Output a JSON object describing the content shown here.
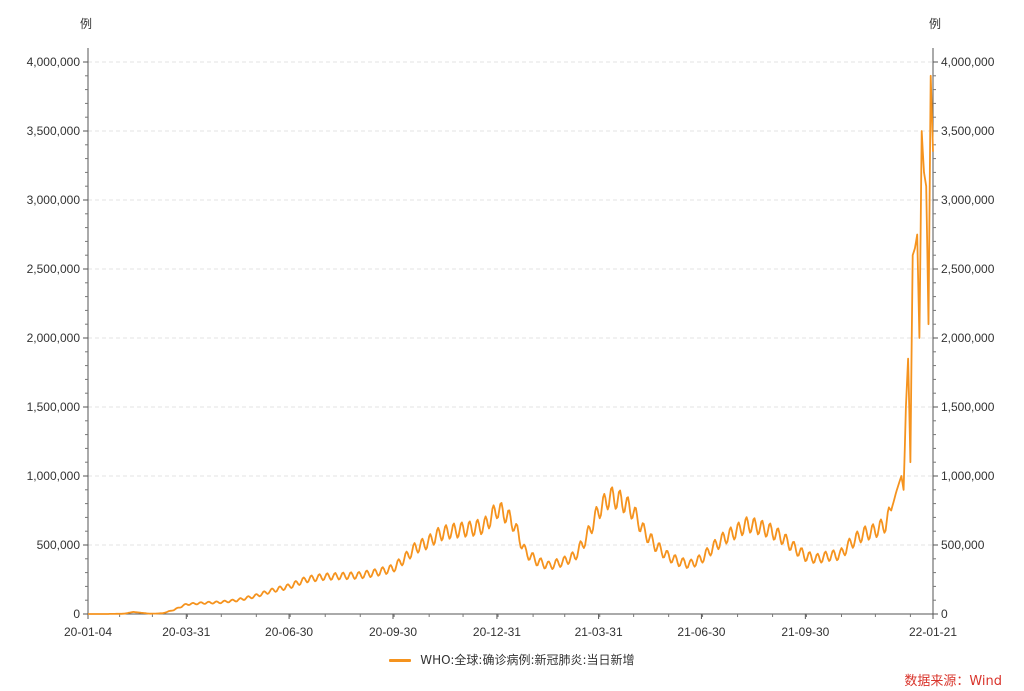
{
  "chart_data": {
    "type": "line",
    "title": "",
    "ylabel_left": "例",
    "ylabel_right": "例",
    "ylim": [
      0,
      4000000
    ],
    "y_ticks": [
      0,
      500000,
      1000000,
      1500000,
      2000000,
      2500000,
      3000000,
      3500000,
      4000000
    ],
    "y_tick_labels": [
      "0",
      "500,000",
      "1,000,000",
      "1,500,000",
      "2,000,000",
      "2,500,000",
      "3,000,000",
      "3,500,000",
      "4,000,000"
    ],
    "xlim": [
      "2020-01-04",
      "2022-01-21"
    ],
    "x_tick_labels": [
      "20-01-04",
      "20-03-31",
      "20-06-30",
      "20-09-30",
      "20-12-31",
      "21-03-31",
      "21-06-30",
      "21-09-30",
      "22-01-21"
    ],
    "x_tick_dates": [
      "2020-01-04",
      "2020-03-31",
      "2020-06-30",
      "2020-09-30",
      "2020-12-31",
      "2021-03-31",
      "2021-06-30",
      "2021-09-30",
      "2022-01-21"
    ],
    "grid": "horizontal-dashed",
    "legend_placement": "bottom-center",
    "series": [
      {
        "name": "WHO:全球:确诊病例:新冠肺炎:当日新增",
        "color": "#F5931E",
        "x": [
          "2020-01-04",
          "2020-01-20",
          "2020-02-05",
          "2020-02-13",
          "2020-02-28",
          "2020-03-10",
          "2020-03-20",
          "2020-03-31",
          "2020-04-15",
          "2020-04-30",
          "2020-05-15",
          "2020-05-31",
          "2020-06-15",
          "2020-06-30",
          "2020-07-15",
          "2020-07-31",
          "2020-08-15",
          "2020-08-31",
          "2020-09-15",
          "2020-09-30",
          "2020-10-10",
          "2020-10-20",
          "2020-10-31",
          "2020-11-10",
          "2020-11-20",
          "2020-11-30",
          "2020-12-10",
          "2020-12-20",
          "2020-12-26",
          "2020-12-31",
          "2021-01-08",
          "2021-01-15",
          "2021-01-25",
          "2021-02-05",
          "2021-02-15",
          "2021-02-28",
          "2021-03-10",
          "2021-03-20",
          "2021-03-31",
          "2021-04-10",
          "2021-04-20",
          "2021-04-30",
          "2021-05-10",
          "2021-05-20",
          "2021-05-31",
          "2021-06-10",
          "2021-06-20",
          "2021-06-30",
          "2021-07-10",
          "2021-07-20",
          "2021-07-31",
          "2021-08-10",
          "2021-08-20",
          "2021-08-31",
          "2021-09-10",
          "2021-09-20",
          "2021-09-30",
          "2021-10-10",
          "2021-10-20",
          "2021-10-31",
          "2021-11-10",
          "2021-11-20",
          "2021-11-30",
          "2021-12-10",
          "2021-12-15",
          "2021-12-20",
          "2021-12-22",
          "2021-12-24",
          "2021-12-26",
          "2021-12-28",
          "2021-12-30",
          "2022-01-01",
          "2022-01-03",
          "2022-01-05",
          "2022-01-07",
          "2022-01-09",
          "2022-01-11",
          "2022-01-13",
          "2022-01-15",
          "2022-01-17",
          "2022-01-19",
          "2022-01-21"
        ],
        "values": [
          0,
          0,
          2000,
          15000,
          2000,
          5000,
          30000,
          70000,
          80000,
          85000,
          100000,
          130000,
          170000,
          200000,
          250000,
          270000,
          275000,
          280000,
          300000,
          330000,
          400000,
          480000,
          520000,
          580000,
          600000,
          610000,
          620000,
          640000,
          700000,
          760000,
          720000,
          650000,
          450000,
          380000,
          350000,
          380000,
          420000,
          550000,
          750000,
          850000,
          820000,
          750000,
          600000,
          500000,
          420000,
          380000,
          360000,
          400000,
          480000,
          550000,
          600000,
          650000,
          630000,
          600000,
          550000,
          480000,
          420000,
          400000,
          420000,
          430000,
          520000,
          580000,
          600000,
          650000,
          750000,
          900000,
          950000,
          1000000,
          900000,
          1500000,
          1850000,
          1100000,
          2600000,
          2650000,
          2750000,
          2000000,
          3500000,
          3200000,
          3100000,
          2100000,
          3900000,
          3350000
        ]
      }
    ]
  },
  "legend": {
    "label": "WHO:全球:确诊病例:新冠肺炎:当日新增"
  },
  "source": "数据来源：Wind"
}
